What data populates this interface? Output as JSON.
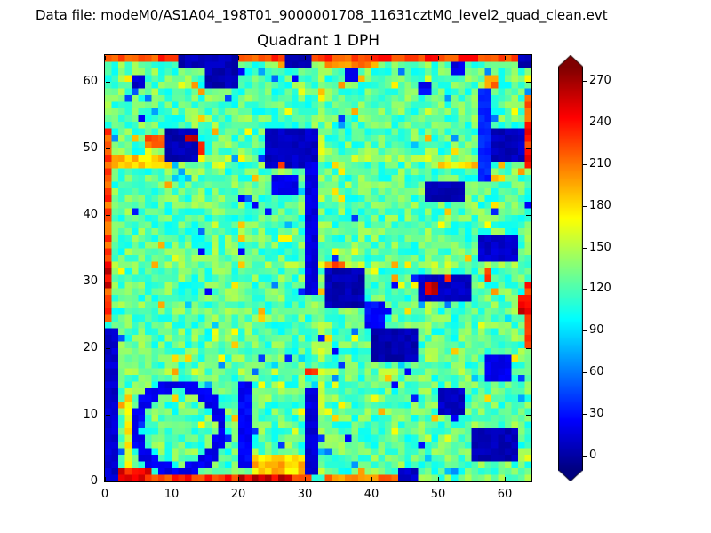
{
  "header": {
    "data_file_label": "Data file: modeM0/AS1A04_198T01_9000001708_11631cztM0_level2_quad_clean.evt"
  },
  "chart_data": {
    "type": "heatmap",
    "title": "Quadrant 1 DPH",
    "xlabel": "",
    "ylabel": "",
    "xlim": [
      0,
      64
    ],
    "ylim": [
      0,
      64
    ],
    "x_ticks": [
      0,
      10,
      20,
      30,
      40,
      50,
      60
    ],
    "y_ticks": [
      0,
      10,
      20,
      30,
      40,
      50,
      60
    ],
    "grid_size": 64,
    "colormap": "jet",
    "grid": false,
    "colorbar": {
      "ticks": [
        0,
        30,
        60,
        90,
        120,
        150,
        180,
        210,
        240,
        270
      ],
      "extend": "both",
      "vmin": -10,
      "vmax": 280
    },
    "generation": {
      "seed": 1708,
      "background_level": 124,
      "noise_amplitude": 26,
      "navy_speckle": {
        "fraction": 0.008,
        "value": 25
      },
      "low_speckle": {
        "fraction": 0.02,
        "value": 60,
        "spread": 30
      },
      "high_speckle": {
        "fraction": 0.025,
        "value": 182,
        "spread": 20
      },
      "seams": {
        "positions": [
          16,
          32,
          48
        ],
        "bump": 12
      }
    },
    "high_features": [
      {
        "x": 0,
        "y": 63,
        "w": 64,
        "h": 1,
        "v": 228
      },
      {
        "x": 33,
        "y": 62,
        "w": 8,
        "h": 1,
        "v": 205
      },
      {
        "x": 2,
        "y": 0,
        "w": 29,
        "h": 1,
        "v": 232
      },
      {
        "x": 20,
        "y": 0,
        "w": 8,
        "h": 1,
        "v": 255
      },
      {
        "x": 2,
        "y": 0,
        "w": 5,
        "h": 2,
        "v": 245
      },
      {
        "x": 33,
        "y": 0,
        "w": 11,
        "h": 1,
        "v": 205
      },
      {
        "x": 22,
        "y": 1,
        "w": 8,
        "h": 3,
        "v": 185
      },
      {
        "x": 0,
        "y": 24,
        "w": 1,
        "h": 29,
        "v": 222
      },
      {
        "x": 0,
        "y": 29,
        "w": 1,
        "h": 4,
        "v": 252
      },
      {
        "x": 1,
        "y": 47,
        "w": 9,
        "h": 2,
        "v": 182
      },
      {
        "x": 3,
        "y": 2,
        "w": 1,
        "h": 12,
        "v": 172
      },
      {
        "x": 63,
        "y": 20,
        "w": 1,
        "h": 10,
        "v": 232
      },
      {
        "x": 63,
        "y": 47,
        "w": 1,
        "h": 7,
        "v": 235
      },
      {
        "x": 63,
        "y": 54,
        "w": 1,
        "h": 4,
        "v": 215
      },
      {
        "x": 62,
        "y": 25,
        "w": 2,
        "h": 3,
        "v": 248
      },
      {
        "x": 6,
        "y": 50,
        "w": 3,
        "h": 2,
        "v": 225
      },
      {
        "x": 33,
        "y": 32,
        "w": 3,
        "h": 1,
        "v": 215
      },
      {
        "x": 50,
        "y": 47,
        "w": 6,
        "h": 1,
        "v": 180
      },
      {
        "x": 57,
        "y": 59,
        "w": 2,
        "h": 2,
        "v": 205
      }
    ],
    "low_features": [
      {
        "x": 11,
        "y": 62,
        "w": 4,
        "h": 2,
        "v": 6
      },
      {
        "x": 15,
        "y": 59,
        "w": 5,
        "h": 5,
        "v": 6
      },
      {
        "x": 4,
        "y": 59,
        "w": 2,
        "h": 2,
        "v": 12
      },
      {
        "x": 27,
        "y": 62,
        "w": 4,
        "h": 2,
        "v": 6
      },
      {
        "x": 9,
        "y": 48,
        "w": 5,
        "h": 5,
        "v": 5
      },
      {
        "x": 24,
        "y": 47,
        "w": 8,
        "h": 6,
        "v": 10
      },
      {
        "x": 25,
        "y": 43,
        "w": 4,
        "h": 3,
        "v": 22
      },
      {
        "x": 30,
        "y": 28,
        "w": 2,
        "h": 20,
        "v": 18
      },
      {
        "x": 48,
        "y": 42,
        "w": 6,
        "h": 3,
        "v": 6
      },
      {
        "x": 57,
        "y": 48,
        "w": 6,
        "h": 5,
        "v": 8
      },
      {
        "x": 56,
        "y": 45,
        "w": 2,
        "h": 14,
        "v": 35
      },
      {
        "x": 33,
        "y": 26,
        "w": 6,
        "h": 6,
        "v": 5
      },
      {
        "x": 39,
        "y": 23,
        "w": 3,
        "h": 4,
        "v": 28
      },
      {
        "x": 40,
        "y": 18,
        "w": 7,
        "h": 5,
        "v": 5
      },
      {
        "x": 47,
        "y": 27,
        "w": 8,
        "h": 4,
        "v": 10
      },
      {
        "x": 56,
        "y": 33,
        "w": 6,
        "h": 4,
        "v": 12
      },
      {
        "x": 0,
        "y": 0,
        "w": 2,
        "h": 23,
        "v": 12
      },
      {
        "x": 20,
        "y": 2,
        "w": 2,
        "h": 13,
        "v": 26
      },
      {
        "x": 30,
        "y": 1,
        "w": 2,
        "h": 13,
        "v": 16
      },
      {
        "x": 55,
        "y": 3,
        "w": 7,
        "h": 5,
        "v": 6
      },
      {
        "x": 50,
        "y": 10,
        "w": 4,
        "h": 4,
        "v": 10
      },
      {
        "x": 57,
        "y": 15,
        "w": 4,
        "h": 4,
        "v": 22
      },
      {
        "x": 44,
        "y": 0,
        "w": 3,
        "h": 2,
        "v": 12
      },
      {
        "x": 62,
        "y": 62,
        "w": 2,
        "h": 2,
        "v": 6
      },
      {
        "x": 47,
        "y": 58,
        "w": 2,
        "h": 2,
        "v": 25
      },
      {
        "x": 36,
        "y": 60,
        "w": 2,
        "h": 2,
        "v": 25
      },
      {
        "x": 52,
        "y": 61,
        "w": 2,
        "h": 2,
        "v": 20
      }
    ],
    "ring_features": [
      {
        "cx": 10.5,
        "cy": 7.5,
        "r": 6.5,
        "thickness": 1.6,
        "value": 22
      }
    ],
    "hot_spots": [
      {
        "x": 12,
        "y": 51,
        "w": 2,
        "h": 1,
        "v": 255
      },
      {
        "x": 14,
        "y": 49,
        "w": 1,
        "h": 2,
        "v": 240
      },
      {
        "x": 48,
        "y": 28,
        "w": 2,
        "h": 2,
        "v": 258
      },
      {
        "x": 51,
        "y": 30,
        "w": 1,
        "h": 1,
        "v": 240
      },
      {
        "x": 57,
        "y": 30,
        "w": 1,
        "h": 2,
        "v": 232
      },
      {
        "x": 30,
        "y": 16,
        "w": 2,
        "h": 1,
        "v": 225
      },
      {
        "x": 26,
        "y": 47,
        "w": 1,
        "h": 1,
        "v": 235
      }
    ]
  }
}
